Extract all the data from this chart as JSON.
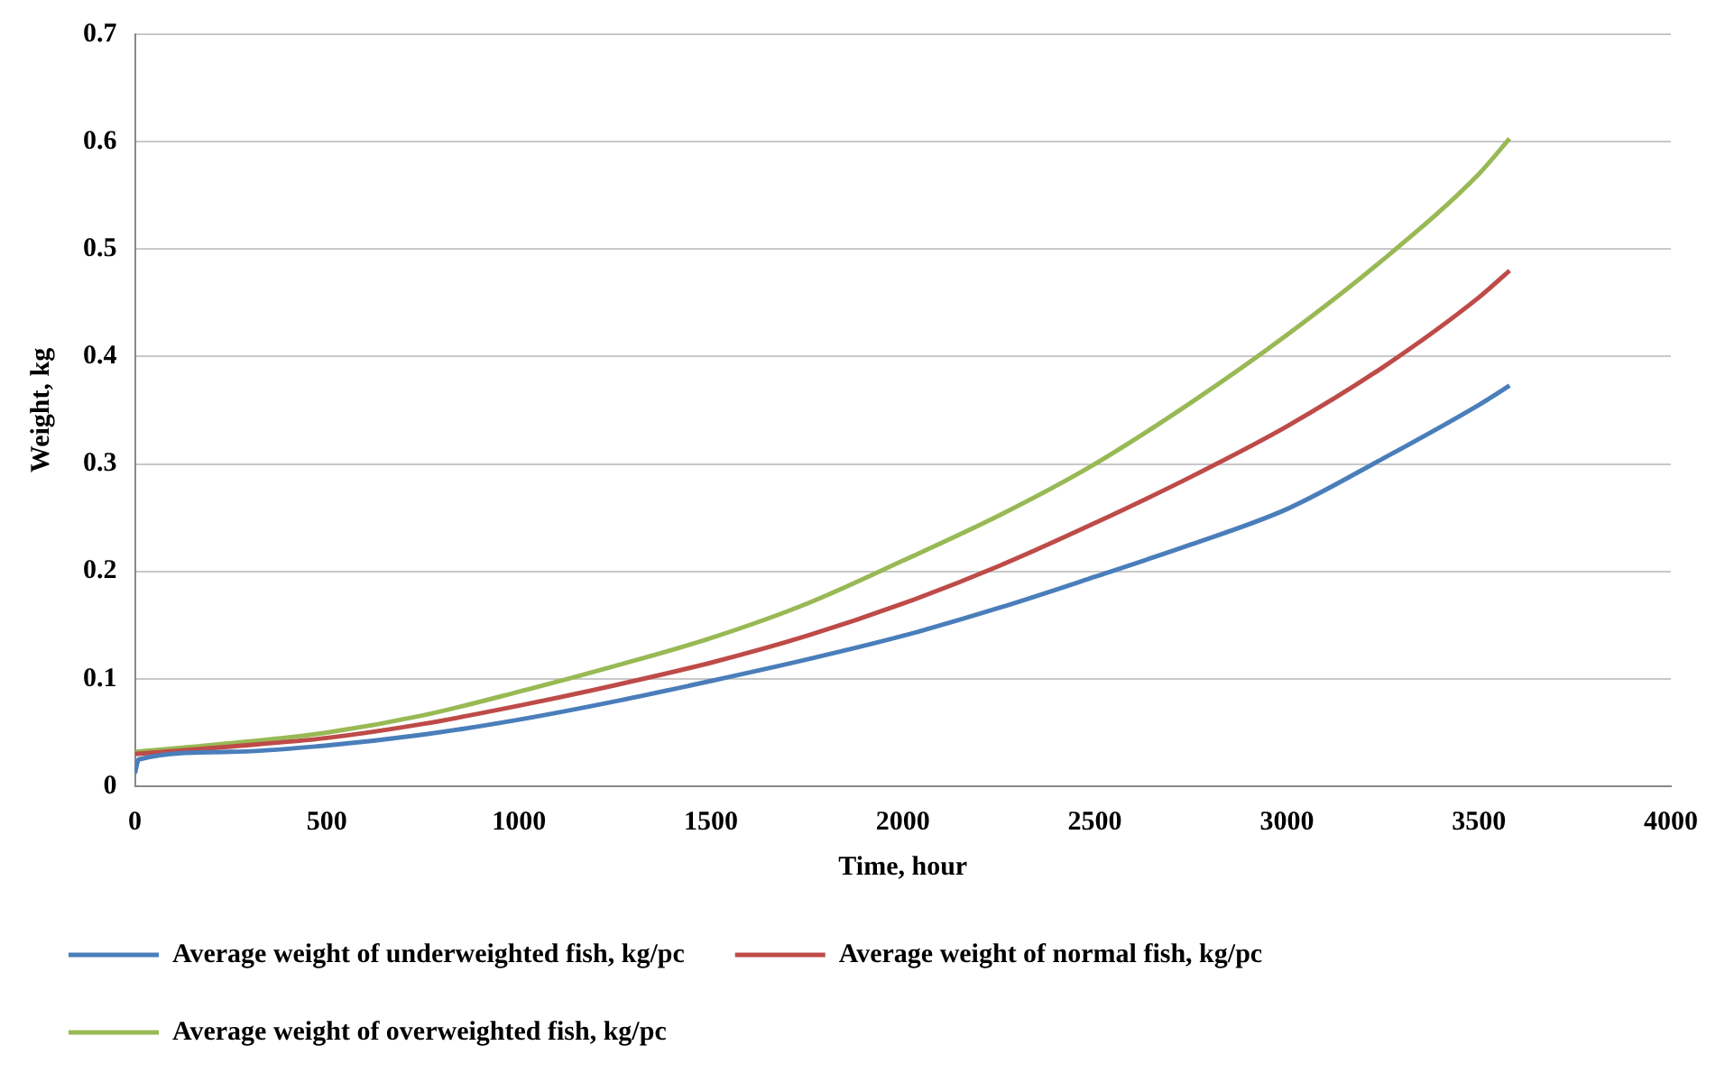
{
  "chart_data": {
    "type": "line",
    "xlabel": "Time, hour",
    "ylabel": "Weight, kg",
    "xlim": [
      0,
      4000
    ],
    "xticks": [
      0,
      500,
      1000,
      1500,
      2000,
      2500,
      3000,
      3500,
      4000
    ],
    "ylim": [
      0,
      0.7
    ],
    "yticks": [
      0,
      0.1,
      0.2,
      0.3,
      0.4,
      0.5,
      0.6,
      0.7
    ],
    "grid": "y",
    "legend": "bottom",
    "marker": "none",
    "line_style": "solid",
    "series": [
      {
        "name": "Average weight of underweighted fish, kg/pc",
        "color": "#4a7ebb",
        "x": [
          0,
          10,
          250,
          500,
          750,
          1000,
          1250,
          1500,
          1750,
          2000,
          2250,
          2500,
          2750,
          3000,
          3250,
          3500,
          3580
        ],
        "values": [
          0.012,
          0.025,
          0.032,
          0.038,
          0.048,
          0.062,
          0.079,
          0.098,
          0.118,
          0.14,
          0.166,
          0.195,
          0.225,
          0.258,
          0.305,
          0.355,
          0.373
        ]
      },
      {
        "name": "Average weight of normal fish, kg/pc",
        "color": "#be4b48",
        "x": [
          0,
          250,
          500,
          750,
          1000,
          1250,
          1500,
          1750,
          2000,
          2250,
          2500,
          2750,
          3000,
          3250,
          3500,
          3580
        ],
        "values": [
          0.03,
          0.037,
          0.045,
          0.058,
          0.075,
          0.094,
          0.115,
          0.14,
          0.17,
          0.205,
          0.245,
          0.288,
          0.335,
          0.39,
          0.455,
          0.48
        ]
      },
      {
        "name": "Average weight of overweighted fish, kg/pc",
        "color": "#98b954",
        "x": [
          0,
          250,
          500,
          750,
          1000,
          1250,
          1500,
          1750,
          2000,
          2250,
          2500,
          2750,
          3000,
          3250,
          3500,
          3580
        ],
        "values": [
          0.032,
          0.04,
          0.05,
          0.066,
          0.088,
          0.112,
          0.138,
          0.17,
          0.21,
          0.252,
          0.3,
          0.357,
          0.42,
          0.49,
          0.57,
          0.603
        ]
      }
    ]
  }
}
